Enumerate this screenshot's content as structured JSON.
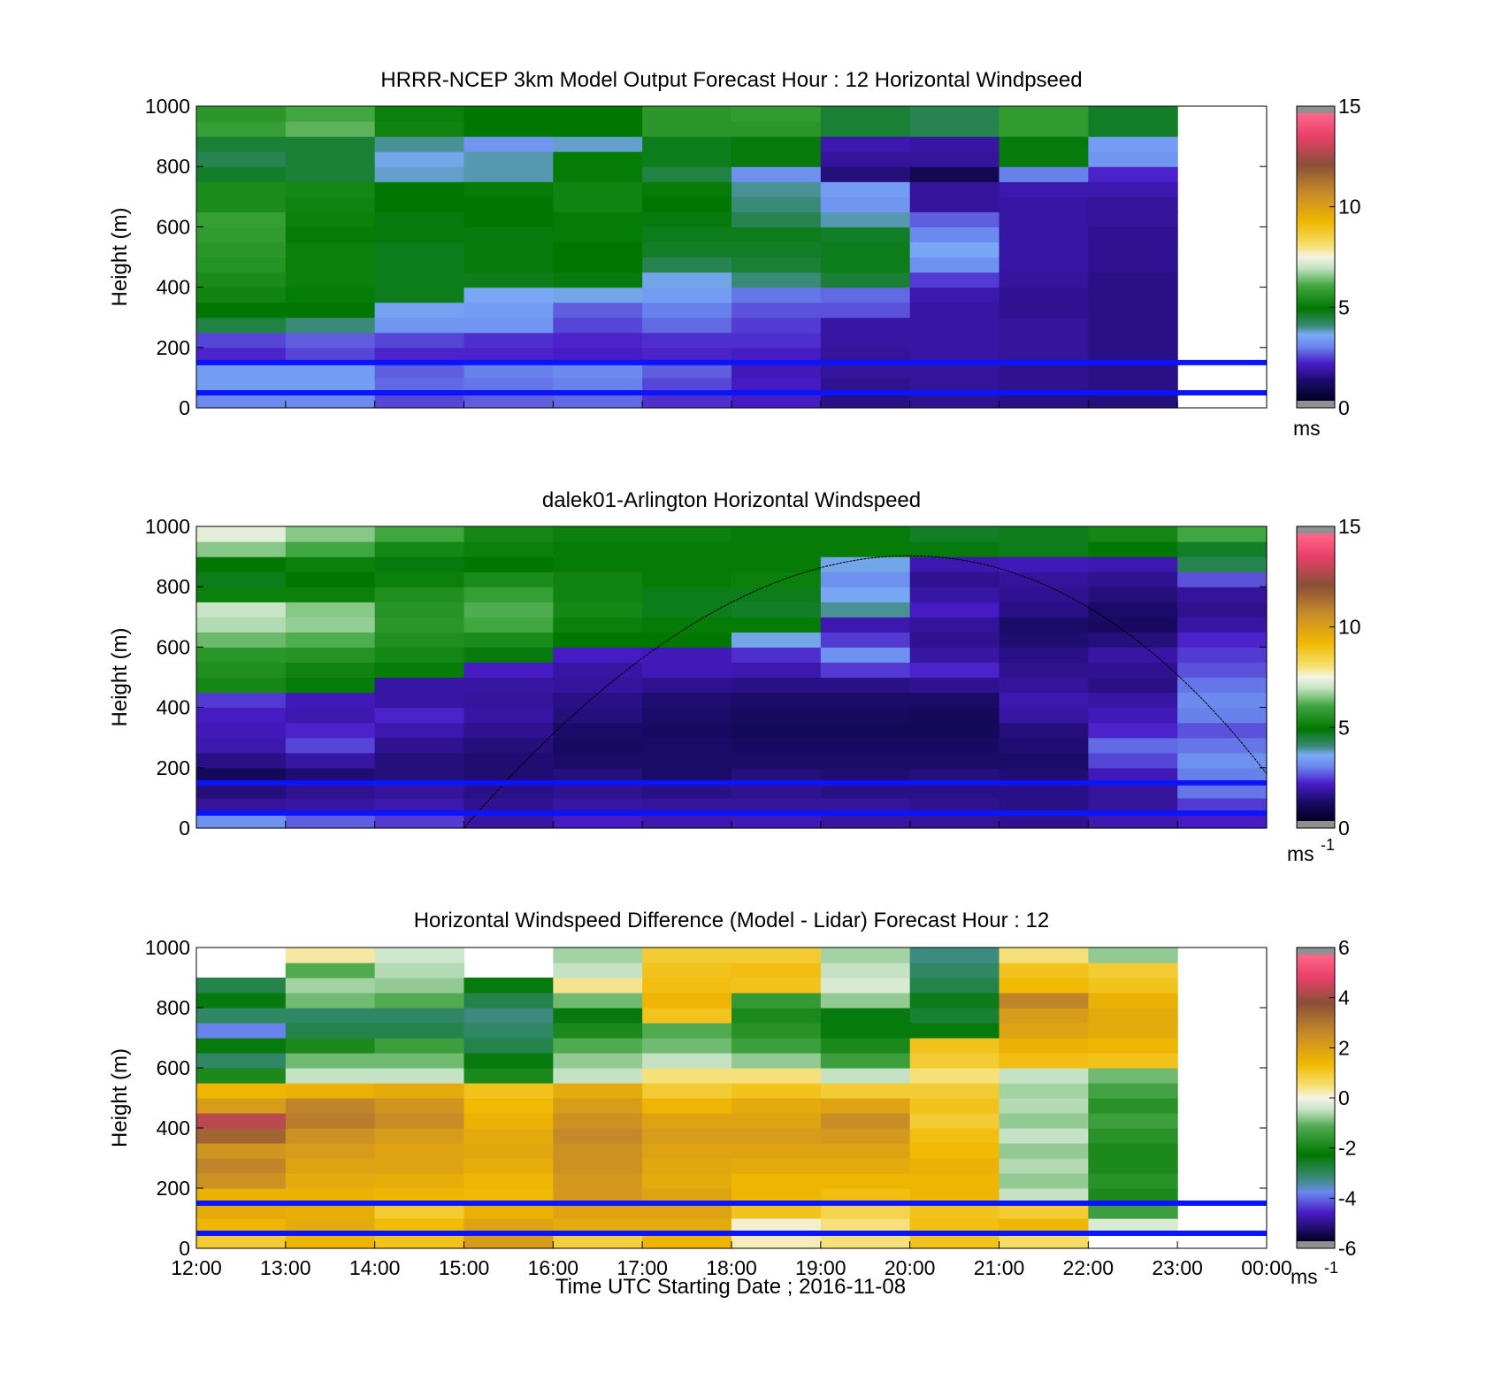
{
  "figure": {
    "xlabel": "Time UTC  Starting Date ; 2016-11-08",
    "x_ticks": [
      "12:00",
      "13:00",
      "14:00",
      "15:00",
      "16:00",
      "17:00",
      "18:00",
      "19:00",
      "20:00",
      "21:00",
      "22:00",
      "23:00",
      "00:00"
    ]
  },
  "chart_data": [
    {
      "type": "heatmap",
      "title": "HRRR-NCEP 3km Model Output   Forecast Hour : 12 Horizontal Windpseed",
      "ylabel": "Height (m)",
      "y_ticks": [
        "0",
        "200",
        "400",
        "600",
        "800",
        "1000"
      ],
      "ylim": [
        0,
        1000
      ],
      "xlim": [
        "12:00",
        "00:00"
      ],
      "colorbar": {
        "ticks": [
          "0",
          "5",
          "10",
          "15"
        ],
        "range": [
          0,
          15
        ],
        "unit": "ms"
      },
      "reference_lines_m": [
        50,
        150
      ],
      "hours": [
        "12:00",
        "13:00",
        "14:00",
        "15:00",
        "16:00",
        "17:00",
        "18:00",
        "19:00",
        "20:00",
        "21:00",
        "22:00"
      ],
      "heights_m": [
        25,
        75,
        125,
        175,
        225,
        275,
        325,
        375,
        425,
        475,
        525,
        575,
        625,
        675,
        725,
        775,
        825,
        875,
        925,
        975
      ],
      "values": [
        [
          2.9,
          3.2,
          3.2,
          2.0,
          2.3,
          4.3,
          4.8,
          5.1,
          5.3,
          5.5,
          5.6,
          5.7,
          5.8,
          5.3,
          5.3,
          4.5,
          4.2,
          4.4,
          5.8,
          5.6
        ],
        [
          2.9,
          3.2,
          3.2,
          2.3,
          2.5,
          3.9,
          4.8,
          4.9,
          5.0,
          5.0,
          5.0,
          4.9,
          5.0,
          5.1,
          5.2,
          4.4,
          4.4,
          4.4,
          6.2,
          6.0
        ],
        [
          2.3,
          2.6,
          2.5,
          2.0,
          2.3,
          3.1,
          3.3,
          4.6,
          4.6,
          4.6,
          4.6,
          4.7,
          4.7,
          4.8,
          4.8,
          3.6,
          3.5,
          3.8,
          5.1,
          5.0
        ],
        [
          2.5,
          2.7,
          2.8,
          2.0,
          2.1,
          3.1,
          3.2,
          3.4,
          4.6,
          4.7,
          4.7,
          4.7,
          4.8,
          4.8,
          4.9,
          3.7,
          3.7,
          3.1,
          4.8,
          4.8
        ],
        [
          2.6,
          2.8,
          2.9,
          1.9,
          2.0,
          2.3,
          2.5,
          3.5,
          4.7,
          4.8,
          4.8,
          4.9,
          4.9,
          5.1,
          5.1,
          4.9,
          4.9,
          3.6,
          4.8,
          4.8
        ],
        [
          2.1,
          2.3,
          2.5,
          2.0,
          2.1,
          2.6,
          2.8,
          3.2,
          3.5,
          4.2,
          4.5,
          4.6,
          4.7,
          4.8,
          4.9,
          4.3,
          4.6,
          4.6,
          5.6,
          5.6
        ],
        [
          1.9,
          1.9,
          1.8,
          1.9,
          2.1,
          2.2,
          2.4,
          2.7,
          3.9,
          4.4,
          4.5,
          4.6,
          4.2,
          3.9,
          3.8,
          3.0,
          4.7,
          4.7,
          5.6,
          5.7
        ],
        [
          1.3,
          1.4,
          1.5,
          1.5,
          1.6,
          1.6,
          2.4,
          2.6,
          4.4,
          4.6,
          4.6,
          4.5,
          3.7,
          3.1,
          3.2,
          1.2,
          1.5,
          1.7,
          4.4,
          4.4
        ],
        [
          1.4,
          1.5,
          1.5,
          1.6,
          1.6,
          1.6,
          1.6,
          1.7,
          2.2,
          3.0,
          3.4,
          2.9,
          2.5,
          1.5,
          1.5,
          0.7,
          1.5,
          1.6,
          4.2,
          4.2
        ],
        [
          1.3,
          1.4,
          1.4,
          1.5,
          1.5,
          1.5,
          1.4,
          1.4,
          1.5,
          1.6,
          1.6,
          1.6,
          1.6,
          1.6,
          1.7,
          2.8,
          4.7,
          4.7,
          5.7,
          5.7
        ],
        [
          1.2,
          1.3,
          1.3,
          1.3,
          1.3,
          1.3,
          1.3,
          1.3,
          1.3,
          1.4,
          1.4,
          1.4,
          1.5,
          1.5,
          1.7,
          2.0,
          3.1,
          3.2,
          4.5,
          4.5
        ]
      ]
    },
    {
      "type": "heatmap",
      "title": "dalek01-Arlington  Horizontal Windspeed",
      "ylabel": "Height (m)",
      "y_ticks": [
        "0",
        "200",
        "400",
        "600",
        "800",
        "1000"
      ],
      "ylim": [
        0,
        1000
      ],
      "xlim": [
        "12:00",
        "00:00"
      ],
      "colorbar": {
        "ticks": [
          "0",
          "5",
          "10",
          "15"
        ],
        "range": [
          0,
          15
        ],
        "unit_base": "ms",
        "unit_exp": "-1"
      },
      "reference_lines_m": [
        50,
        150
      ],
      "overlay_curve": {
        "description": "thin black arc",
        "points": [
          [
            "15:00",
            0
          ],
          [
            "19:45",
            900
          ],
          [
            "00:00",
            180
          ]
        ]
      },
      "hours": [
        "12:00",
        "13:00",
        "14:00",
        "15:00",
        "16:00",
        "17:00",
        "18:00",
        "19:00",
        "20:00",
        "21:00",
        "22:00",
        "23:00"
      ],
      "heights_m": [
        25,
        75,
        125,
        175,
        225,
        275,
        325,
        375,
        425,
        475,
        525,
        575,
        625,
        675,
        725,
        775,
        825,
        875,
        925,
        975
      ],
      "values": [
        [
          3.0,
          1.5,
          1.2,
          0.8,
          1.3,
          1.7,
          1.8,
          1.9,
          2.2,
          5.2,
          5.4,
          5.6,
          6.3,
          6.8,
          7.0,
          5.0,
          4.6,
          4.8,
          6.5,
          7.3
        ],
        [
          2.5,
          1.6,
          1.4,
          1.1,
          1.6,
          2.3,
          2.0,
          1.7,
          1.8,
          4.9,
          5.1,
          5.5,
          6.1,
          6.6,
          6.5,
          5.0,
          4.8,
          5.0,
          6.0,
          6.5
        ],
        [
          2.2,
          1.7,
          1.5,
          1.2,
          1.2,
          1.4,
          1.7,
          2.0,
          1.6,
          1.6,
          4.9,
          5.2,
          5.4,
          5.6,
          5.5,
          5.4,
          5.0,
          4.7,
          5.2,
          6.0
        ],
        [
          1.6,
          1.4,
          1.3,
          1.1,
          1.1,
          1.2,
          1.4,
          1.6,
          1.5,
          1.6,
          1.9,
          4.7,
          5.3,
          6.0,
          6.1,
          5.8,
          5.3,
          4.8,
          5.0,
          5.2
        ],
        [
          1.9,
          1.6,
          1.4,
          1.2,
          1.0,
          0.9,
          1.0,
          1.2,
          1.3,
          1.5,
          1.6,
          1.9,
          4.8,
          5.0,
          5.2,
          5.1,
          5.1,
          4.9,
          4.9,
          5.0
        ],
        [
          1.7,
          1.5,
          1.3,
          1.0,
          1.0,
          1.0,
          0.9,
          1.0,
          1.1,
          1.4,
          1.8,
          1.8,
          4.8,
          4.9,
          4.6,
          4.6,
          4.9,
          4.9,
          4.9,
          5.0
        ],
        [
          1.8,
          1.5,
          1.4,
          1.2,
          1.0,
          0.9,
          0.8,
          0.9,
          1.0,
          1.3,
          1.7,
          2.1,
          3.5,
          4.9,
          4.5,
          4.6,
          5.0,
          4.9,
          4.9,
          4.9
        ],
        [
          1.6,
          1.5,
          1.3,
          1.1,
          1.0,
          0.9,
          0.8,
          0.9,
          1.0,
          1.3,
          2.2,
          3.0,
          2.2,
          1.7,
          3.8,
          3.4,
          3.0,
          3.5,
          4.9,
          4.9
        ],
        [
          1.5,
          1.4,
          1.3,
          1.2,
          1.0,
          0.9,
          0.8,
          0.8,
          1.0,
          1.4,
          2.0,
          1.6,
          1.4,
          1.5,
          1.9,
          1.6,
          1.4,
          1.7,
          4.7,
          4.5
        ],
        [
          1.4,
          1.3,
          1.3,
          1.1,
          1.0,
          1.1,
          1.2,
          1.6,
          1.7,
          1.5,
          1.4,
          1.3,
          1.1,
          1.0,
          1.3,
          1.4,
          1.5,
          1.8,
          4.6,
          4.6
        ],
        [
          1.7,
          1.5,
          1.5,
          1.8,
          2.3,
          2.6,
          2.0,
          1.8,
          1.6,
          1.3,
          1.4,
          1.6,
          1.2,
          0.9,
          1.0,
          1.2,
          1.4,
          1.7,
          4.8,
          5.2
        ],
        [
          1.9,
          2.2,
          2.7,
          2.8,
          3.0,
          2.7,
          2.4,
          2.8,
          2.9,
          2.7,
          2.4,
          2.2,
          2.0,
          1.6,
          1.4,
          1.5,
          2.4,
          4.2,
          4.5,
          6.0
        ]
      ]
    },
    {
      "type": "heatmap",
      "title": "Horizontal Windspeed Difference (Model - Lidar) Forecast Hour : 12",
      "ylabel": "Height (m)",
      "y_ticks": [
        "0",
        "200",
        "400",
        "600",
        "800",
        "1000"
      ],
      "ylim": [
        0,
        1000
      ],
      "xlim": [
        "12:00",
        "00:00"
      ],
      "colorbar": {
        "ticks": [
          "-6",
          "-4",
          "-2",
          "0",
          "2",
          "4",
          "6"
        ],
        "range": [
          -6,
          6
        ],
        "unit_base": "ms",
        "unit_exp": "-1"
      },
      "reference_lines_m": [
        50,
        150
      ],
      "hours": [
        "12:00",
        "13:00",
        "14:00",
        "15:00",
        "16:00",
        "17:00",
        "18:00",
        "19:00",
        "20:00",
        "21:00",
        "22:00"
      ],
      "heights_m": [
        25,
        75,
        125,
        175,
        225,
        275,
        325,
        375,
        425,
        475,
        525,
        575,
        625,
        675,
        725,
        775,
        825,
        875,
        925,
        975
      ],
      "values": [
        [
          1.0,
          1.5,
          1.8,
          1.6,
          2.5,
          2.8,
          2.4,
          3.5,
          4.5,
          2.2,
          1.5,
          -2.0,
          -3.2,
          -2.5,
          -4.0,
          -3.2,
          -2.5,
          -3.0,
          null,
          null
        ],
        [
          1.5,
          1.8,
          1.7,
          1.6,
          1.8,
          2.0,
          2.2,
          2.5,
          3.0,
          2.8,
          1.6,
          -0.5,
          -1.0,
          -2.0,
          -3.0,
          -3.2,
          -1.0,
          -0.7,
          -1.2,
          0.3
        ],
        [
          1.2,
          1.4,
          1.0,
          1.5,
          1.7,
          2.0,
          2.0,
          2.2,
          2.6,
          2.4,
          1.8,
          -0.5,
          -1.0,
          -1.5,
          -3.0,
          -3.2,
          -1.2,
          -0.8,
          -0.6,
          -0.4
        ],
        [
          2.2,
          2.0,
          1.6,
          1.4,
          1.5,
          1.7,
          1.9,
          1.8,
          1.6,
          1.4,
          1.2,
          -2.0,
          -2.5,
          -3.0,
          -3.2,
          -3.4,
          -3.0,
          -2.5,
          null,
          null
        ],
        [
          0.9,
          1.8,
          2.0,
          2.3,
          2.3,
          2.5,
          2.5,
          2.7,
          2.5,
          2.2,
          1.8,
          -0.5,
          -0.8,
          -1.2,
          -2.0,
          -2.5,
          -1.0,
          0.4,
          -0.5,
          -0.7
        ],
        [
          1.5,
          1.8,
          2.0,
          2.0,
          1.8,
          1.9,
          2.0,
          2.2,
          2.0,
          1.5,
          1.0,
          0.5,
          -0.5,
          -1.0,
          -1.2,
          1.2,
          1.5,
          1.3,
          1.2,
          1.0
        ],
        [
          0.2,
          0.1,
          1.2,
          1.5,
          1.5,
          1.8,
          2.0,
          2.2,
          2.0,
          1.8,
          1.2,
          0.5,
          -0.8,
          -1.5,
          -1.8,
          -2.0,
          -1.6,
          1.2,
          1.3,
          1.0
        ],
        [
          0.5,
          0.5,
          0.8,
          1.3,
          1.5,
          1.8,
          2.0,
          2.3,
          2.6,
          2.0,
          1.0,
          -0.5,
          -1.5,
          -2.0,
          -2.5,
          -2.5,
          -0.8,
          -0.3,
          -0.5,
          -0.7
        ],
        [
          1.2,
          1.3,
          1.2,
          1.5,
          1.5,
          1.6,
          1.4,
          1.3,
          1.0,
          1.2,
          1.0,
          0.5,
          1.0,
          1.2,
          -2.5,
          -2.8,
          -2.6,
          -3.0,
          -3.2,
          -3.4
        ],
        [
          0.6,
          1.5,
          1.0,
          -0.5,
          -0.8,
          -0.6,
          -0.8,
          -0.5,
          -0.8,
          -0.6,
          -0.7,
          -0.5,
          1.3,
          1.6,
          2.0,
          2.2,
          2.8,
          1.4,
          1.2,
          0.5
        ],
        [
          null,
          -0.3,
          -1.5,
          -2.0,
          -1.8,
          -2.0,
          -2.0,
          -1.8,
          -1.5,
          -1.8,
          -1.4,
          -1.0,
          1.2,
          1.5,
          1.8,
          1.8,
          1.6,
          1.2,
          1.0,
          -0.8
        ]
      ]
    }
  ]
}
